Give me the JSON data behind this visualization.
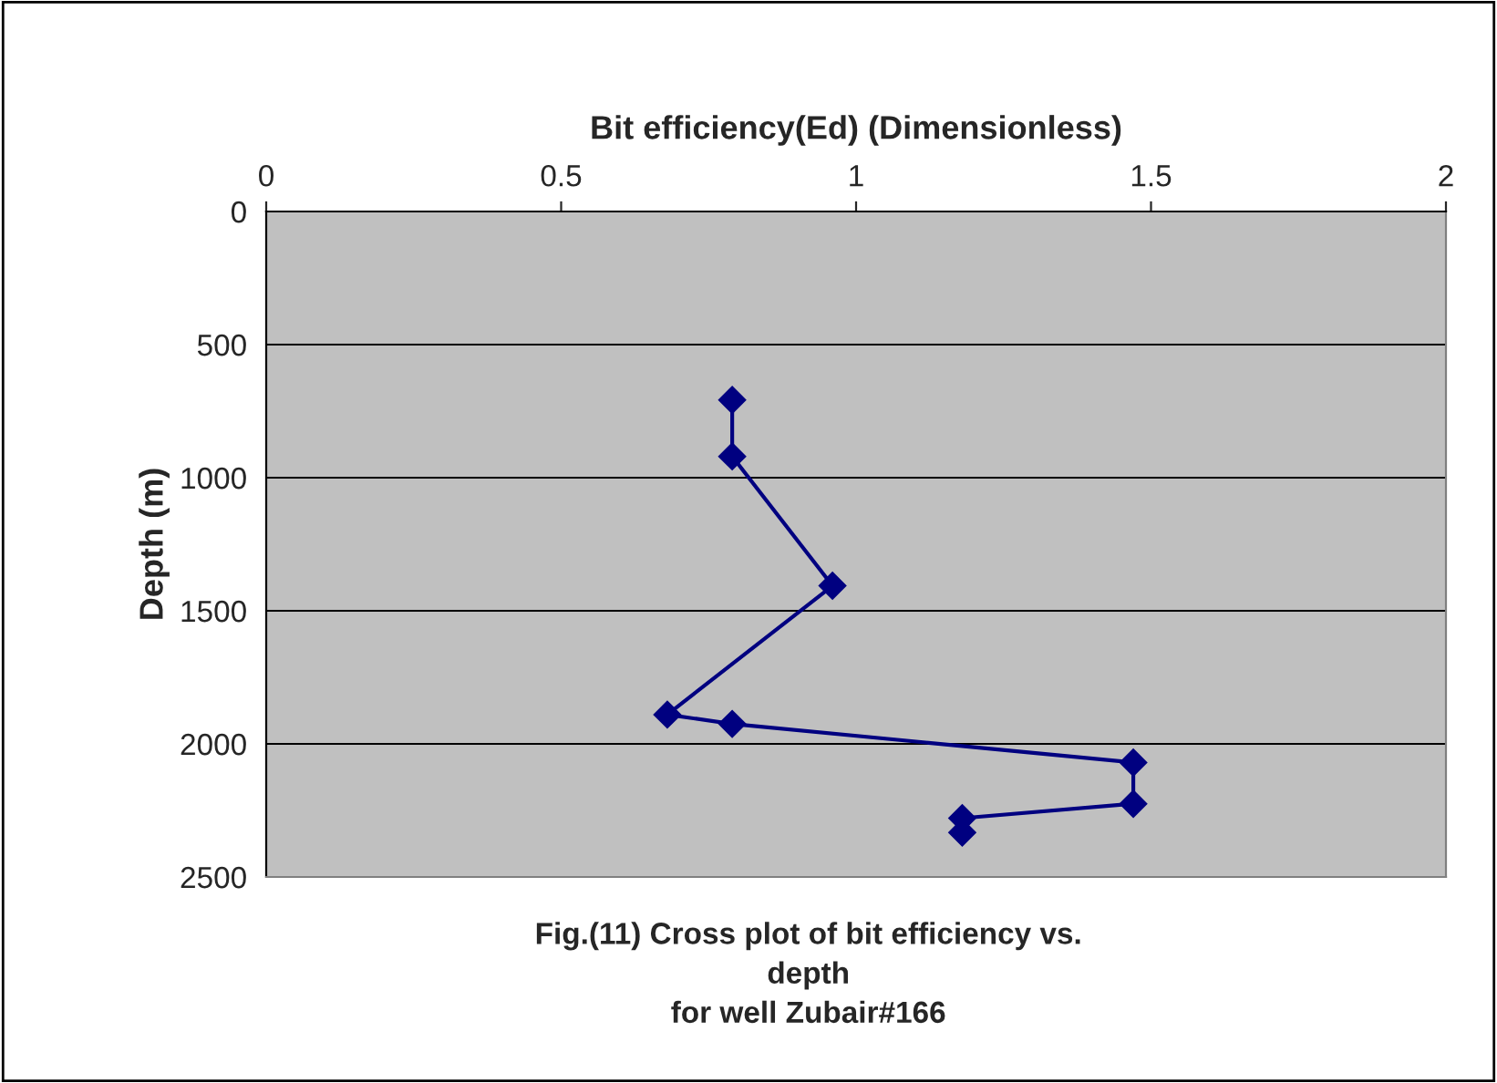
{
  "chart_data": {
    "type": "line",
    "xlabel": "Bit efficiency(Ed) (Dimensionless)",
    "ylabel": "Depth (m)",
    "annotations": [
      "Fig.(11) Cross plot of bit efficiency vs.\ndepth\nfor well Zubair#166"
    ],
    "series": [
      {
        "color": "#000080",
        "x": [
          0.79,
          0.79,
          0.96,
          0.68,
          0.79,
          1.47,
          1.47,
          1.18,
          1.18
        ],
        "values": [
          708,
          920,
          1406,
          1890,
          1925,
          2070,
          2225,
          2279,
          2333
        ]
      }
    ],
    "xlim": [
      0,
      2
    ],
    "xticks": [
      0,
      0.5,
      1,
      1.5,
      2
    ],
    "ylim": [
      2500,
      0
    ],
    "yticks": [
      0,
      500,
      1000,
      1500,
      2000,
      2500
    ],
    "grid": "y",
    "marker": "diamond",
    "line_style": "solid",
    "legend": false
  }
}
